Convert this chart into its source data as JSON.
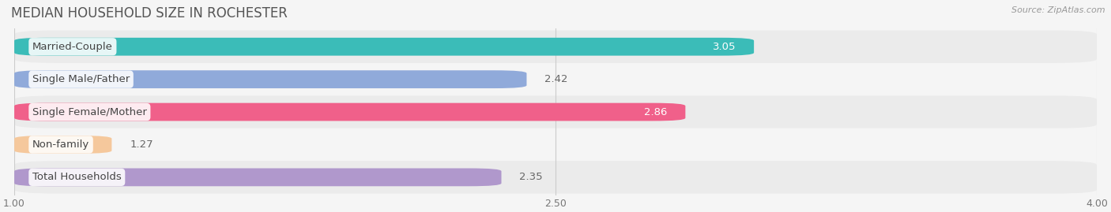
{
  "title": "MEDIAN HOUSEHOLD SIZE IN ROCHESTER",
  "source_text": "Source: ZipAtlas.com",
  "categories": [
    "Married-Couple",
    "Single Male/Father",
    "Single Female/Mother",
    "Non-family",
    "Total Households"
  ],
  "values": [
    3.05,
    2.42,
    2.86,
    1.27,
    2.35
  ],
  "bar_colors": [
    "#3bbcb8",
    "#90aada",
    "#f0608a",
    "#f5c89c",
    "#b098cc"
  ],
  "row_bg_odd": "#ebebeb",
  "row_bg_even": "#f5f5f5",
  "xmin": 1.0,
  "xmax": 4.0,
  "xticks": [
    1.0,
    2.5,
    4.0
  ],
  "value_labels": [
    "3.05",
    "2.42",
    "2.86",
    "1.27",
    "2.35"
  ],
  "value_inside": [
    true,
    false,
    true,
    false,
    false
  ],
  "background_color": "#f5f5f5",
  "title_fontsize": 12,
  "label_fontsize": 9.5,
  "value_fontsize": 9.5
}
